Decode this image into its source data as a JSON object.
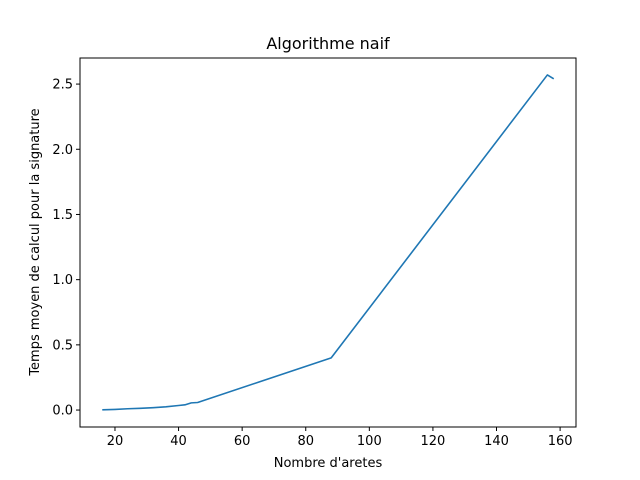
{
  "chart_data": {
    "type": "line",
    "title": "Algorithme naif",
    "xlabel": "Nombre d'aretes",
    "ylabel": "Temps moyen de calcul pour la signature",
    "xlim": [
      9,
      165
    ],
    "ylim": [
      -0.13,
      2.7
    ],
    "xticks": [
      20,
      40,
      60,
      80,
      100,
      120,
      140,
      160
    ],
    "xtick_labels": [
      "20",
      "40",
      "60",
      "80",
      "100",
      "120",
      "140",
      "160"
    ],
    "yticks": [
      0.0,
      0.5,
      1.0,
      1.5,
      2.0,
      2.5
    ],
    "ytick_labels": [
      "0.0",
      "0.5",
      "1.0",
      "1.5",
      "2.0",
      "2.5"
    ],
    "grid": false,
    "series": [
      {
        "color": "#1f77b4",
        "x": [
          16,
          20,
          24,
          28,
          32,
          36,
          40,
          42,
          44,
          46,
          88,
          156,
          158
        ],
        "y": [
          0.002,
          0.005,
          0.01,
          0.013,
          0.018,
          0.025,
          0.035,
          0.04,
          0.055,
          0.058,
          0.4,
          2.57,
          2.54
        ]
      }
    ]
  }
}
